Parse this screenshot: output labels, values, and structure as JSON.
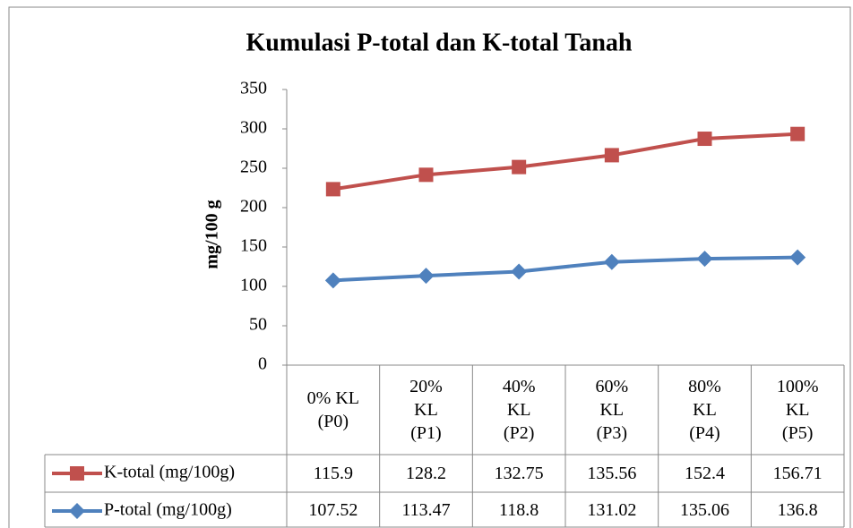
{
  "chart_data": {
    "type": "line",
    "stacked": true,
    "title": "Kumulasi P-total dan K-total Tanah",
    "y_label": "mg/100 g",
    "categories": [
      "0% KL (P0)",
      "20% KL (P1)",
      "40% KL (P2)",
      "60% KL (P3)",
      "80% KL (P4)",
      "100% KL (P5)"
    ],
    "series": [
      {
        "name": "P-total (mg/100g)",
        "color": "#4f81bd",
        "marker": "diamond",
        "values": [
          107.52,
          113.47,
          118.8,
          131.02,
          135.06,
          136.8
        ]
      },
      {
        "name": "K-total (mg/100g)",
        "color": "#c0504d",
        "marker": "square",
        "values": [
          115.9,
          128.2,
          132.75,
          135.56,
          152.4,
          156.71
        ]
      }
    ],
    "ylim": [
      0,
      350
    ],
    "yticks": [
      0,
      50,
      100,
      150,
      200,
      250,
      300,
      350
    ],
    "grid": false,
    "data_table": true
  }
}
